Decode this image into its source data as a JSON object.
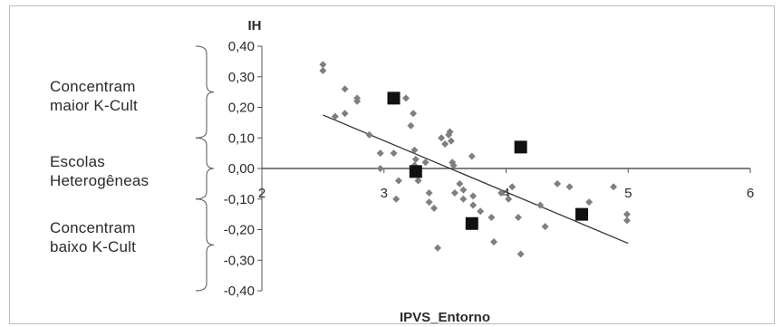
{
  "chart_data": {
    "type": "scatter",
    "ylabel": "IH",
    "xlabel": "IPVS_Entorno",
    "xlim": [
      2,
      6
    ],
    "ylim": [
      -0.4,
      0.4
    ],
    "x_ticks": [
      "2",
      "3",
      "4",
      "5",
      "6"
    ],
    "y_ticks": [
      "0,40",
      "0,30",
      "0,20",
      "0,10",
      "0,00",
      "-0,10",
      "-0,20",
      "-0,30",
      "-0,40"
    ],
    "grid": false,
    "series": [
      {
        "marker": "diamond",
        "color": "#7f7f7f",
        "points": [
          [
            2.5,
            0.34
          ],
          [
            2.5,
            0.32
          ],
          [
            2.6,
            0.17
          ],
          [
            2.68,
            0.26
          ],
          [
            2.68,
            0.18
          ],
          [
            2.78,
            0.23
          ],
          [
            2.78,
            0.22
          ],
          [
            2.88,
            0.11
          ],
          [
            2.97,
            0.05
          ],
          [
            2.97,
            0.0
          ],
          [
            3.08,
            0.22
          ],
          [
            3.08,
            0.05
          ],
          [
            3.1,
            -0.1
          ],
          [
            3.12,
            -0.04
          ],
          [
            3.18,
            0.23
          ],
          [
            3.22,
            0.14
          ],
          [
            3.24,
            0.18
          ],
          [
            3.25,
            0.06
          ],
          [
            3.25,
            0.01
          ],
          [
            3.26,
            0.03
          ],
          [
            3.28,
            -0.02
          ],
          [
            3.28,
            -0.04
          ],
          [
            3.34,
            0.02
          ],
          [
            3.37,
            -0.08
          ],
          [
            3.37,
            -0.11
          ],
          [
            3.41,
            -0.13
          ],
          [
            3.44,
            -0.26
          ],
          [
            3.47,
            0.1
          ],
          [
            3.5,
            0.08
          ],
          [
            3.53,
            0.11
          ],
          [
            3.54,
            0.12
          ],
          [
            3.55,
            0.09
          ],
          [
            3.56,
            0.02
          ],
          [
            3.57,
            0.01
          ],
          [
            3.58,
            -0.08
          ],
          [
            3.62,
            -0.05
          ],
          [
            3.65,
            -0.07
          ],
          [
            3.65,
            -0.1
          ],
          [
            3.72,
            0.04
          ],
          [
            3.73,
            -0.09
          ],
          [
            3.73,
            -0.12
          ],
          [
            3.79,
            -0.14
          ],
          [
            3.88,
            -0.16
          ],
          [
            3.9,
            -0.24
          ],
          [
            3.96,
            -0.08
          ],
          [
            4.02,
            -0.1
          ],
          [
            4.05,
            -0.06
          ],
          [
            4.1,
            -0.16
          ],
          [
            4.12,
            -0.28
          ],
          [
            4.28,
            -0.12
          ],
          [
            4.32,
            -0.19
          ],
          [
            4.42,
            -0.05
          ],
          [
            4.52,
            -0.06
          ],
          [
            4.68,
            -0.11
          ],
          [
            4.88,
            -0.06
          ],
          [
            4.99,
            -0.15
          ],
          [
            4.99,
            -0.17
          ]
        ]
      },
      {
        "marker": "square",
        "color": "#111111",
        "points": [
          [
            3.08,
            0.23
          ],
          [
            3.26,
            -0.01
          ],
          [
            3.72,
            -0.18
          ],
          [
            4.12,
            0.07
          ],
          [
            4.62,
            -0.15
          ]
        ]
      }
    ],
    "trendline": {
      "x": [
        2.5,
        5.0
      ],
      "y": [
        0.175,
        -0.245
      ],
      "color": "#333333"
    },
    "annotations": [
      {
        "lines": [
          "Concentram",
          "maior K-Cult"
        ],
        "range": [
          0.1,
          0.4
        ]
      },
      {
        "lines": [
          "Escolas",
          "Heterogêneas"
        ],
        "range": [
          -0.1,
          0.1
        ]
      },
      {
        "lines": [
          "Concentram",
          "baixo K-Cult"
        ],
        "range": [
          -0.4,
          -0.1
        ]
      }
    ]
  }
}
